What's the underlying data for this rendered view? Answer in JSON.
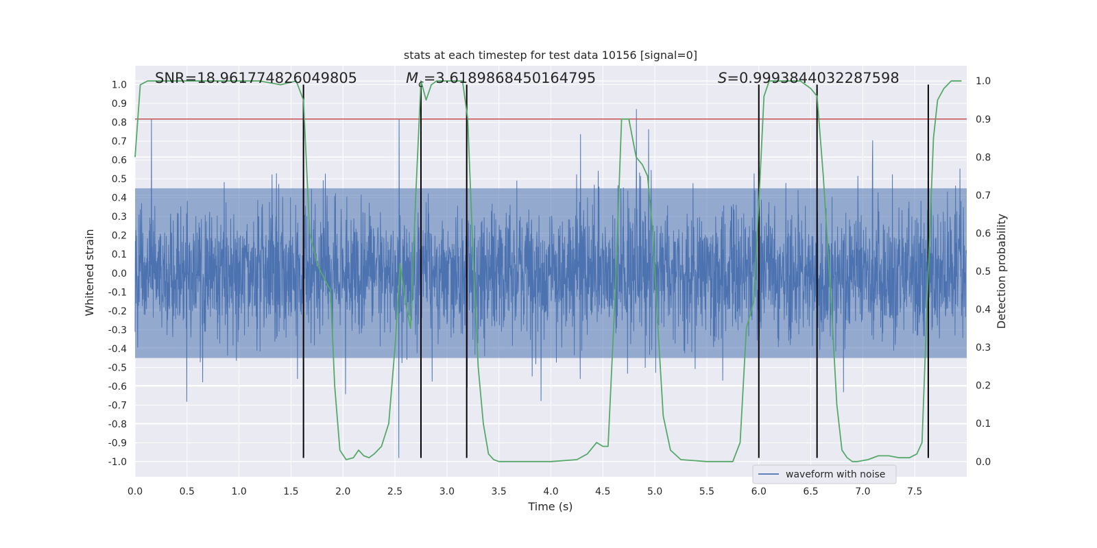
{
  "chart_data": {
    "type": "line",
    "title": "stats at each timestep for test data 10156 [signal=0]",
    "xlabel": "Time (s)",
    "ylabel_left": "Whitened strain",
    "ylabel_right": "Detection probability",
    "xlim": [
      0,
      8
    ],
    "ylim_left": [
      -1.08,
      1.1
    ],
    "ylim_right": [
      -0.04,
      1.04
    ],
    "x_ticks": [
      "0.0",
      "0.5",
      "1.0",
      "1.5",
      "2.0",
      "2.5",
      "3.0",
      "3.5",
      "4.0",
      "4.5",
      "5.0",
      "5.5",
      "6.0",
      "6.5",
      "7.0",
      "7.5"
    ],
    "y_ticks_left": [
      "1.0",
      "0.9",
      "0.8",
      "0.7",
      "0.6",
      "0.5",
      "0.4",
      "0.3",
      "0.2",
      "0.1",
      "0.0",
      "-0.1",
      "-0.2",
      "-0.3",
      "-0.4",
      "-0.5",
      "-0.6",
      "-0.7",
      "-0.8",
      "-0.9",
      "-1.0"
    ],
    "y_ticks_right": [
      "1.0",
      "0.9",
      "0.8",
      "0.7",
      "0.6",
      "0.5",
      "0.4",
      "0.3",
      "0.2",
      "0.1",
      "0.0"
    ],
    "annotations": {
      "snr": "SNR=18.961774826049805",
      "mc_symbol": "M",
      "mc_sub": "c",
      "mc_value": "=3.6189868450164795",
      "s_symbol": "S",
      "s_value": "=0.9993844032287598"
    },
    "threshold": {
      "value": 0.9,
      "axis": "right",
      "color": "#c44e52"
    },
    "vertical_lines_x": [
      1.62,
      2.75,
      3.19,
      6.0,
      6.56,
      7.63
    ],
    "vertical_lines_top": 1.0,
    "vertical_lines_bottom": -0.98,
    "series": [
      {
        "name": "waveform with noise",
        "axis": "left",
        "color": "#4c72b0",
        "description": "whitened strain noise, approx. range -0.98 to 0.87, typical envelope ±0.45",
        "envelope": 0.45,
        "seed": 10156
      },
      {
        "name": "detection probability",
        "axis": "right",
        "color": "#55a868",
        "x": [
          0.0,
          0.05,
          0.12,
          0.3,
          0.6,
          0.9,
          1.2,
          1.4,
          1.55,
          1.62,
          1.68,
          1.75,
          1.82,
          1.88,
          1.92,
          1.97,
          2.03,
          2.1,
          2.15,
          2.2,
          2.25,
          2.3,
          2.37,
          2.44,
          2.5,
          2.55,
          2.6,
          2.65,
          2.7,
          2.75,
          2.8,
          2.85,
          2.9,
          3.0,
          3.1,
          3.15,
          3.2,
          3.25,
          3.3,
          3.35,
          3.4,
          3.45,
          3.5,
          3.6,
          3.75,
          4.0,
          4.25,
          4.35,
          4.44,
          4.5,
          4.55,
          4.62,
          4.68,
          4.75,
          4.82,
          4.88,
          4.93,
          4.98,
          5.03,
          5.08,
          5.15,
          5.25,
          5.5,
          5.75,
          5.82,
          5.88,
          5.95,
          6.0,
          6.05,
          6.1,
          6.2,
          6.4,
          6.5,
          6.56,
          6.62,
          6.7,
          6.75,
          6.8,
          6.85,
          6.9,
          6.95,
          7.05,
          7.15,
          7.25,
          7.35,
          7.45,
          7.52,
          7.57,
          7.63,
          7.68,
          7.72,
          7.78,
          7.85,
          7.95
        ],
        "values": [
          0.8,
          0.99,
          1.0,
          1.0,
          1.0,
          1.0,
          1.0,
          0.99,
          1.0,
          0.95,
          0.6,
          0.52,
          0.48,
          0.45,
          0.2,
          0.03,
          0.005,
          0.01,
          0.03,
          0.015,
          0.01,
          0.02,
          0.04,
          0.1,
          0.3,
          0.52,
          0.42,
          0.35,
          0.7,
          1.0,
          0.95,
          0.99,
          1.0,
          1.0,
          1.0,
          1.0,
          0.9,
          0.55,
          0.25,
          0.1,
          0.02,
          0.005,
          0.0,
          0.0,
          0.0,
          0.0,
          0.005,
          0.02,
          0.05,
          0.04,
          0.04,
          0.45,
          0.9,
          0.9,
          0.8,
          0.78,
          0.75,
          0.6,
          0.35,
          0.12,
          0.03,
          0.005,
          0.0,
          0.0,
          0.05,
          0.35,
          0.42,
          0.68,
          0.96,
          1.0,
          1.0,
          1.0,
          0.98,
          0.96,
          0.75,
          0.4,
          0.15,
          0.03,
          0.01,
          0.0,
          0.0,
          0.005,
          0.015,
          0.015,
          0.01,
          0.01,
          0.02,
          0.05,
          0.5,
          0.85,
          0.95,
          0.98,
          1.0,
          1.0
        ]
      }
    ],
    "legend": {
      "entries": [
        "waveform with noise"
      ],
      "location": "lower-right"
    },
    "grid": true
  }
}
